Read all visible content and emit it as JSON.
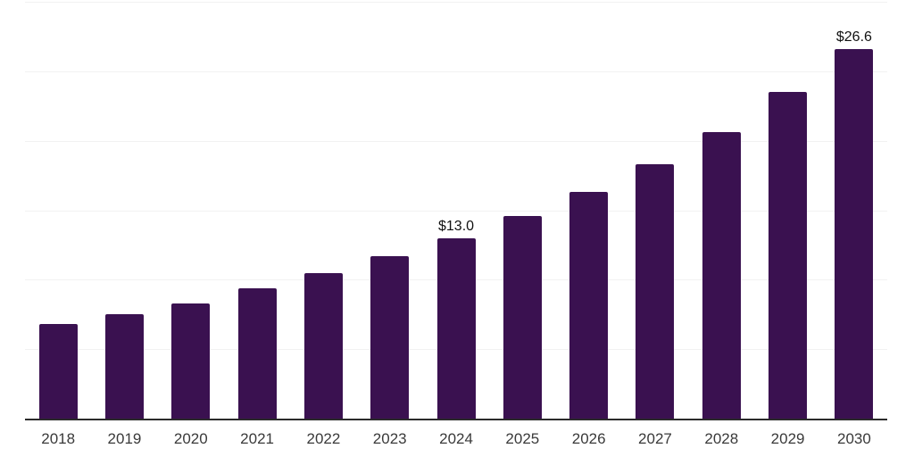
{
  "chart_data": {
    "type": "bar",
    "title": "",
    "xlabel": "",
    "ylabel": "",
    "legend": "none",
    "grid": "horizontal light gridlines, no y-axis tick labels",
    "categories": [
      "2018",
      "2019",
      "2020",
      "2021",
      "2022",
      "2023",
      "2024",
      "2025",
      "2026",
      "2027",
      "2028",
      "2029",
      "2030"
    ],
    "values": [
      6.8,
      7.5,
      8.3,
      9.4,
      10.5,
      11.7,
      13.0,
      14.6,
      16.3,
      18.3,
      20.6,
      23.5,
      26.6
    ],
    "data_labels": {
      "2024": "$13.0",
      "2030": "$26.6"
    },
    "ylim": [
      0,
      30
    ],
    "gridline_values": [
      5,
      10,
      15,
      20,
      25,
      30
    ]
  },
  "styles": {
    "background_color": "#FFFFFF",
    "bar_color": "#3A1150",
    "gridline_color": "#F2F2F2",
    "axis_line_color": "#2B2B2B",
    "tick_label_color": "#3A3A3A",
    "data_label_color": "#111111"
  }
}
